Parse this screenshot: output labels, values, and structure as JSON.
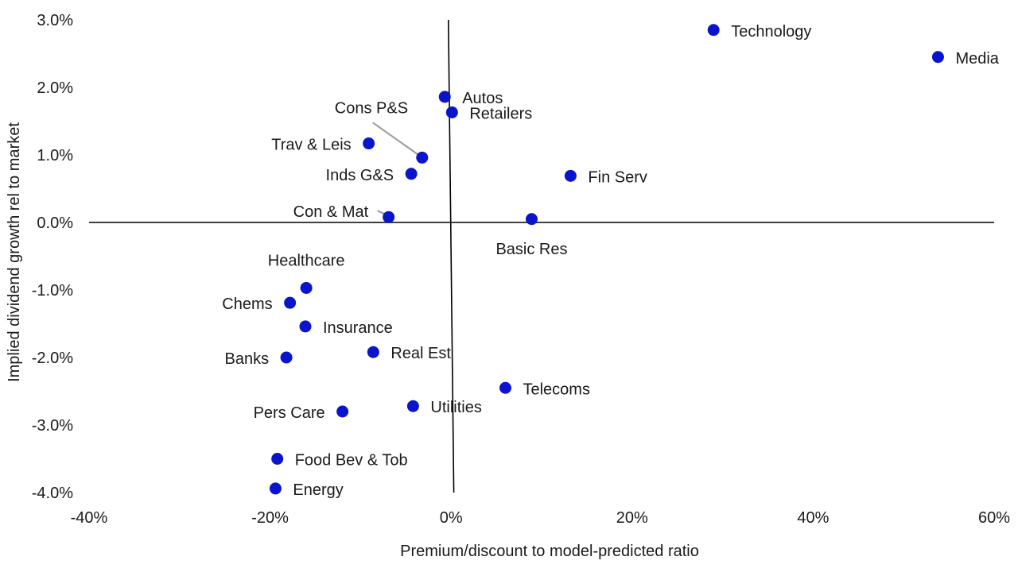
{
  "chart_data": {
    "type": "scatter",
    "title": "",
    "xlabel": "Premium/discount to model-predicted ratio",
    "ylabel": "Implied dividend growth rel to market",
    "xlim": [
      -40,
      60
    ],
    "ylim": [
      -4.0,
      3.0
    ],
    "x_ticks": [
      -40,
      -20,
      0,
      20,
      40,
      60
    ],
    "x_tick_labels": [
      "-40%",
      "-20%",
      "0%",
      "20%",
      "40%",
      "60%"
    ],
    "y_ticks": [
      3.0,
      2.0,
      1.0,
      0.0,
      -1.0,
      -2.0,
      -3.0,
      -4.0
    ],
    "y_tick_labels": [
      "3.0%",
      "2.0%",
      "1.0%",
      "0.0%",
      "-1.0%",
      "-2.0%",
      "-3.0%",
      "-4.0%"
    ],
    "grid": false,
    "marker_color": "#0a14cc",
    "leader_color": "#a0a0a0",
    "points": [
      {
        "name": "Technology",
        "x": 29.0,
        "y": 2.85,
        "label_pos": "right"
      },
      {
        "name": "Media",
        "x": 53.8,
        "y": 2.45,
        "label_pos": "right"
      },
      {
        "name": "Autos",
        "x": -0.7,
        "y": 1.86,
        "label_pos": "right"
      },
      {
        "name": "Retailers",
        "x": 0.1,
        "y": 1.63,
        "label_pos": "right"
      },
      {
        "name": "Cons P&S",
        "x": -3.2,
        "y": 0.96,
        "label_pos": "leader"
      },
      {
        "name": "Trav & Leis",
        "x": -9.1,
        "y": 1.17,
        "label_pos": "left"
      },
      {
        "name": "Inds G&S",
        "x": -4.4,
        "y": 0.72,
        "label_pos": "left"
      },
      {
        "name": "Fin Serv",
        "x": 13.2,
        "y": 0.69,
        "label_pos": "right"
      },
      {
        "name": "Con & Mat",
        "x": -6.9,
        "y": 0.08,
        "label_pos": "leader"
      },
      {
        "name": "Basic Res",
        "x": 8.9,
        "y": 0.05,
        "label_pos": "below"
      },
      {
        "name": "Healthcare",
        "x": -16.0,
        "y": -0.97,
        "label_pos": "above"
      },
      {
        "name": "Chems",
        "x": -17.8,
        "y": -1.19,
        "label_pos": "left"
      },
      {
        "name": "Insurance",
        "x": -16.1,
        "y": -1.54,
        "label_pos": "right"
      },
      {
        "name": "Banks",
        "x": -18.2,
        "y": -2.0,
        "label_pos": "left"
      },
      {
        "name": "Real Est",
        "x": -8.6,
        "y": -1.92,
        "label_pos": "right"
      },
      {
        "name": "Telecoms",
        "x": 6.0,
        "y": -2.45,
        "label_pos": "right"
      },
      {
        "name": "Utilities",
        "x": -4.2,
        "y": -2.72,
        "label_pos": "right"
      },
      {
        "name": "Pers Care",
        "x": -12.0,
        "y": -2.8,
        "label_pos": "left"
      },
      {
        "name": "Food Bev & Tob",
        "x": -19.2,
        "y": -3.5,
        "label_pos": "right"
      },
      {
        "name": "Energy",
        "x": -19.4,
        "y": -3.94,
        "label_pos": "right"
      }
    ]
  }
}
